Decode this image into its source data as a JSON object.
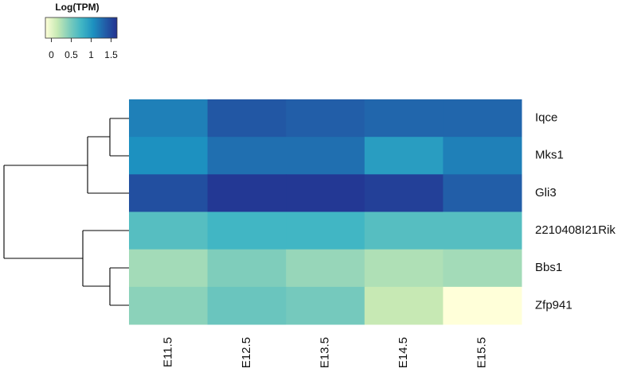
{
  "chart_data": {
    "type": "heatmap",
    "colorbar_title": "Log(TPM)",
    "rows": [
      "Iqce",
      "Mks1",
      "Gli3",
      "2210408I21Rik",
      "Bbs1",
      "Zfp941"
    ],
    "columns": [
      "E11.5",
      "E12.5",
      "E13.5",
      "E14.5",
      "E15.5"
    ],
    "values": [
      [
        1.15,
        1.4,
        1.35,
        1.3,
        1.3
      ],
      [
        1.05,
        1.25,
        1.25,
        0.95,
        1.15
      ],
      [
        1.45,
        1.6,
        1.6,
        1.55,
        1.35
      ],
      [
        0.65,
        0.75,
        0.75,
        0.65,
        0.65
      ],
      [
        0.3,
        0.45,
        0.35,
        0.25,
        0.3
      ],
      [
        0.4,
        0.55,
        0.5,
        0.15,
        -0.15
      ]
    ],
    "colors": [
      "#ffffd9",
      "#c7e9b4",
      "#7fcdbb",
      "#41b6c4",
      "#1d91c0",
      "#225ea8",
      "#233190"
    ],
    "clim": [
      -0.15,
      1.65
    ],
    "cticks": [
      0,
      0.5,
      1,
      1.5
    ]
  }
}
